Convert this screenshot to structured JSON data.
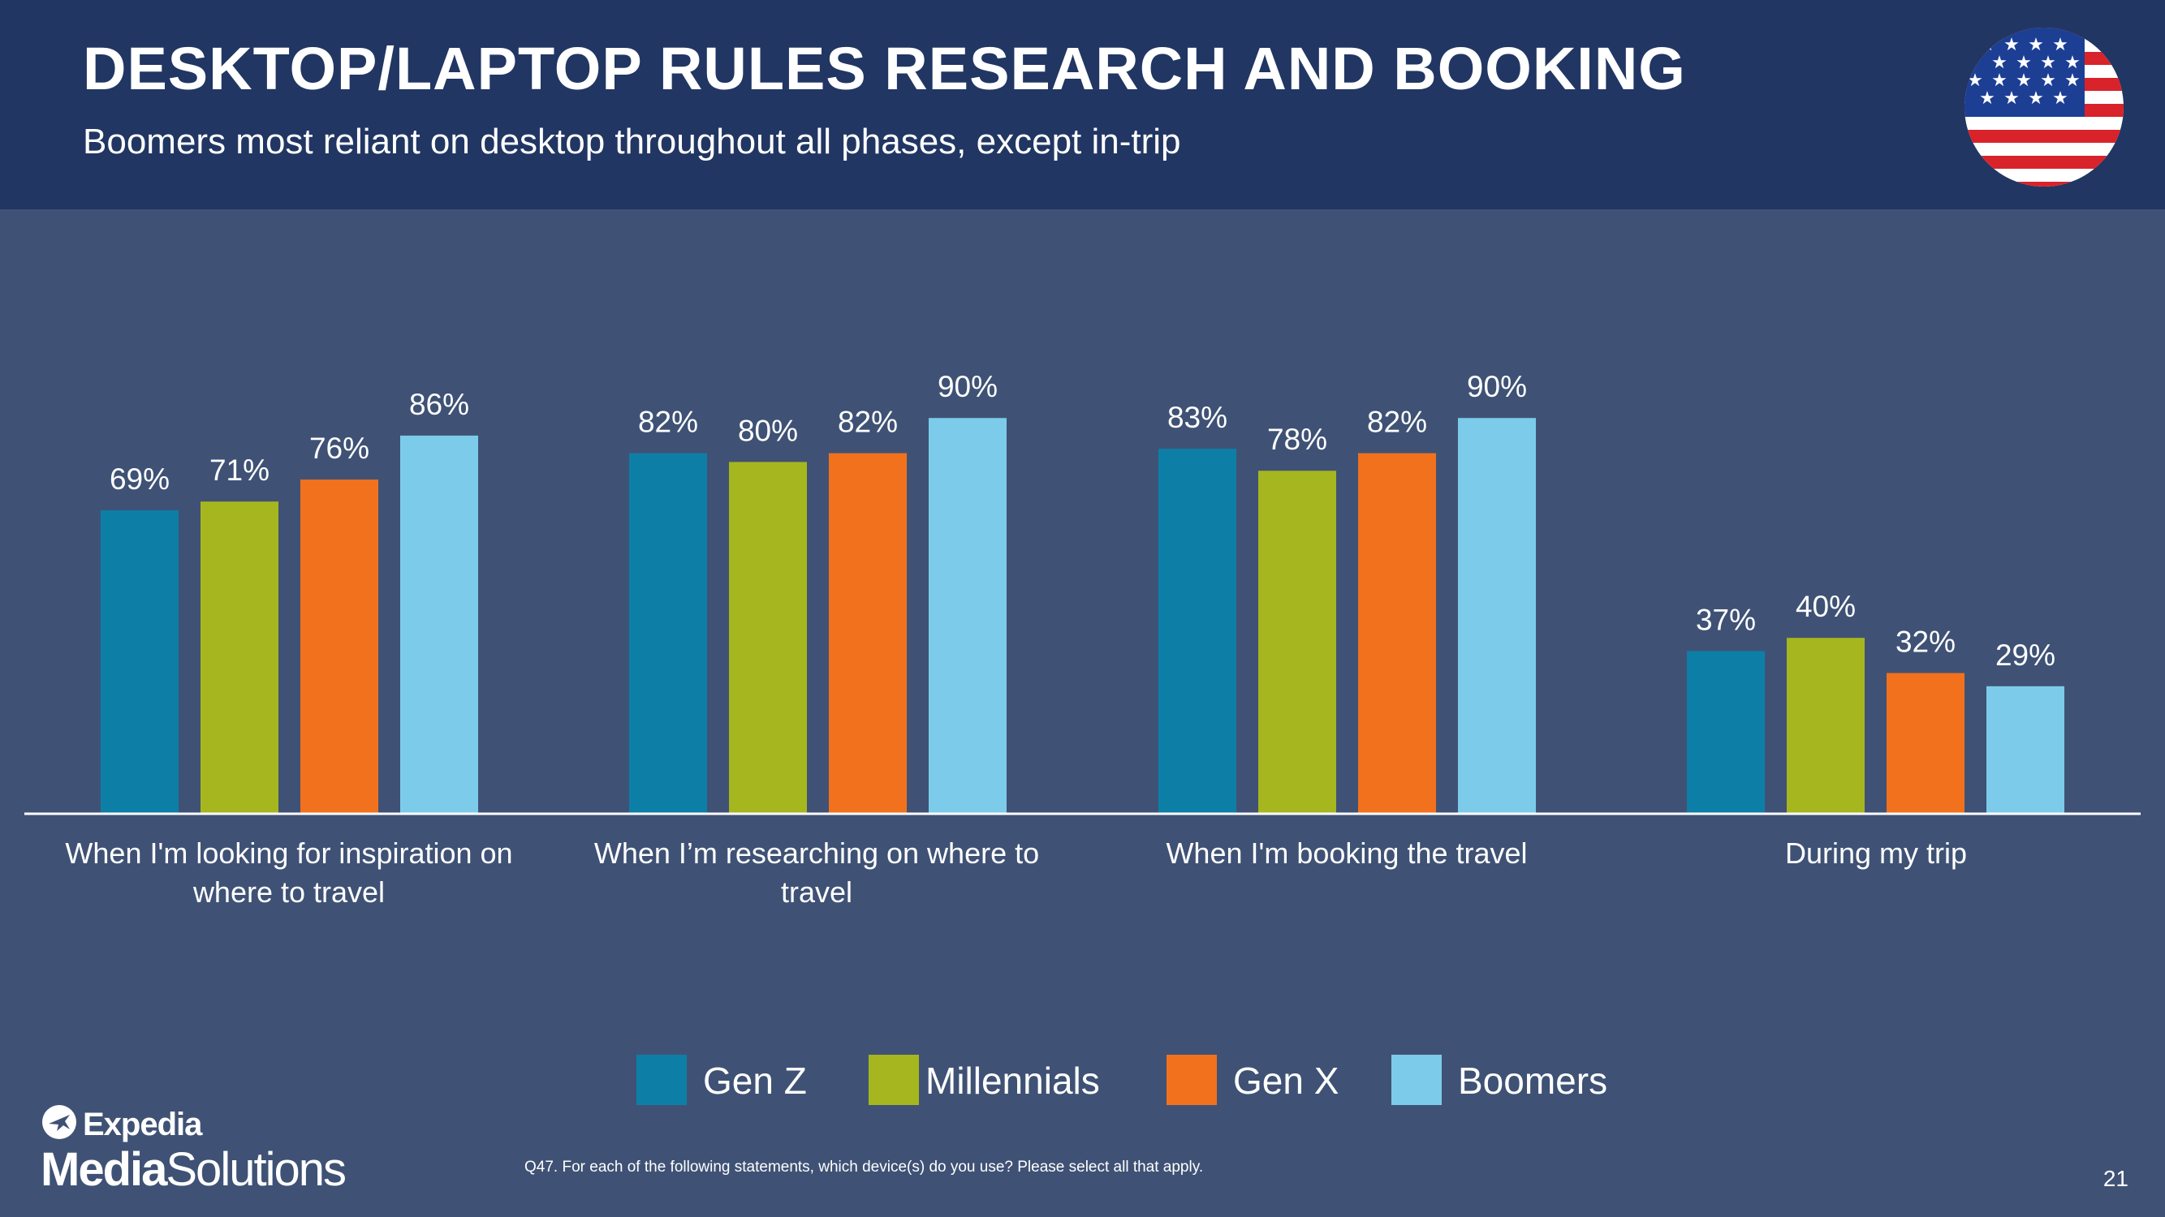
{
  "header": {
    "title": "DESKTOP/LAPTOP RULES RESEARCH AND BOOKING",
    "subtitle": "Boomers most reliant on desktop throughout all phases, except in-trip"
  },
  "chart_data": {
    "type": "bar",
    "title": "DESKTOP/LAPTOP RULES RESEARCH AND BOOKING",
    "xlabel": "",
    "ylabel": "",
    "ylim": [
      0,
      100
    ],
    "grid": false,
    "legend_position": "bottom",
    "categories": [
      "When I'm looking for inspiration on where to travel",
      "When I’m researching on where to travel",
      "When I'm booking the travel",
      "During my trip"
    ],
    "series": [
      {
        "name": "Gen Z",
        "color": "#0d7fa7",
        "values": [
          69,
          82,
          83,
          37
        ],
        "labels": [
          "69%",
          "82%",
          "83%",
          "37%"
        ]
      },
      {
        "name": "Millennials",
        "color": "#a6b61f",
        "values": [
          71,
          80,
          78,
          40
        ],
        "labels": [
          "71%",
          "80%",
          "78%",
          "40%"
        ]
      },
      {
        "name": "Gen X",
        "color": "#f2711d",
        "values": [
          76,
          82,
          82,
          32
        ],
        "labels": [
          "76%",
          "82%",
          "82%",
          "32%"
        ]
      },
      {
        "name": "Boomers",
        "color": "#7dcbea",
        "values": [
          86,
          90,
          90,
          29
        ],
        "labels": [
          "86%",
          "90%",
          "90%",
          "29%"
        ]
      }
    ]
  },
  "category_labels": {
    "c0_line1": "When I'm looking for inspiration on",
    "c0_line2": "where to travel",
    "c1": "When I’m researching on where to travel",
    "c2": "When I'm booking the travel",
    "c3": "During my trip"
  },
  "footnote": "Q47. For each of the following statements, which device(s) do you use? Please select all that apply.",
  "page_number": "21",
  "logo": {
    "line1": "Expedia",
    "line2_bold": "Media",
    "line2_regular": "Solutions"
  },
  "colors": {
    "background": "#3f5275",
    "header": "#213662",
    "axis": "#ffffff"
  }
}
